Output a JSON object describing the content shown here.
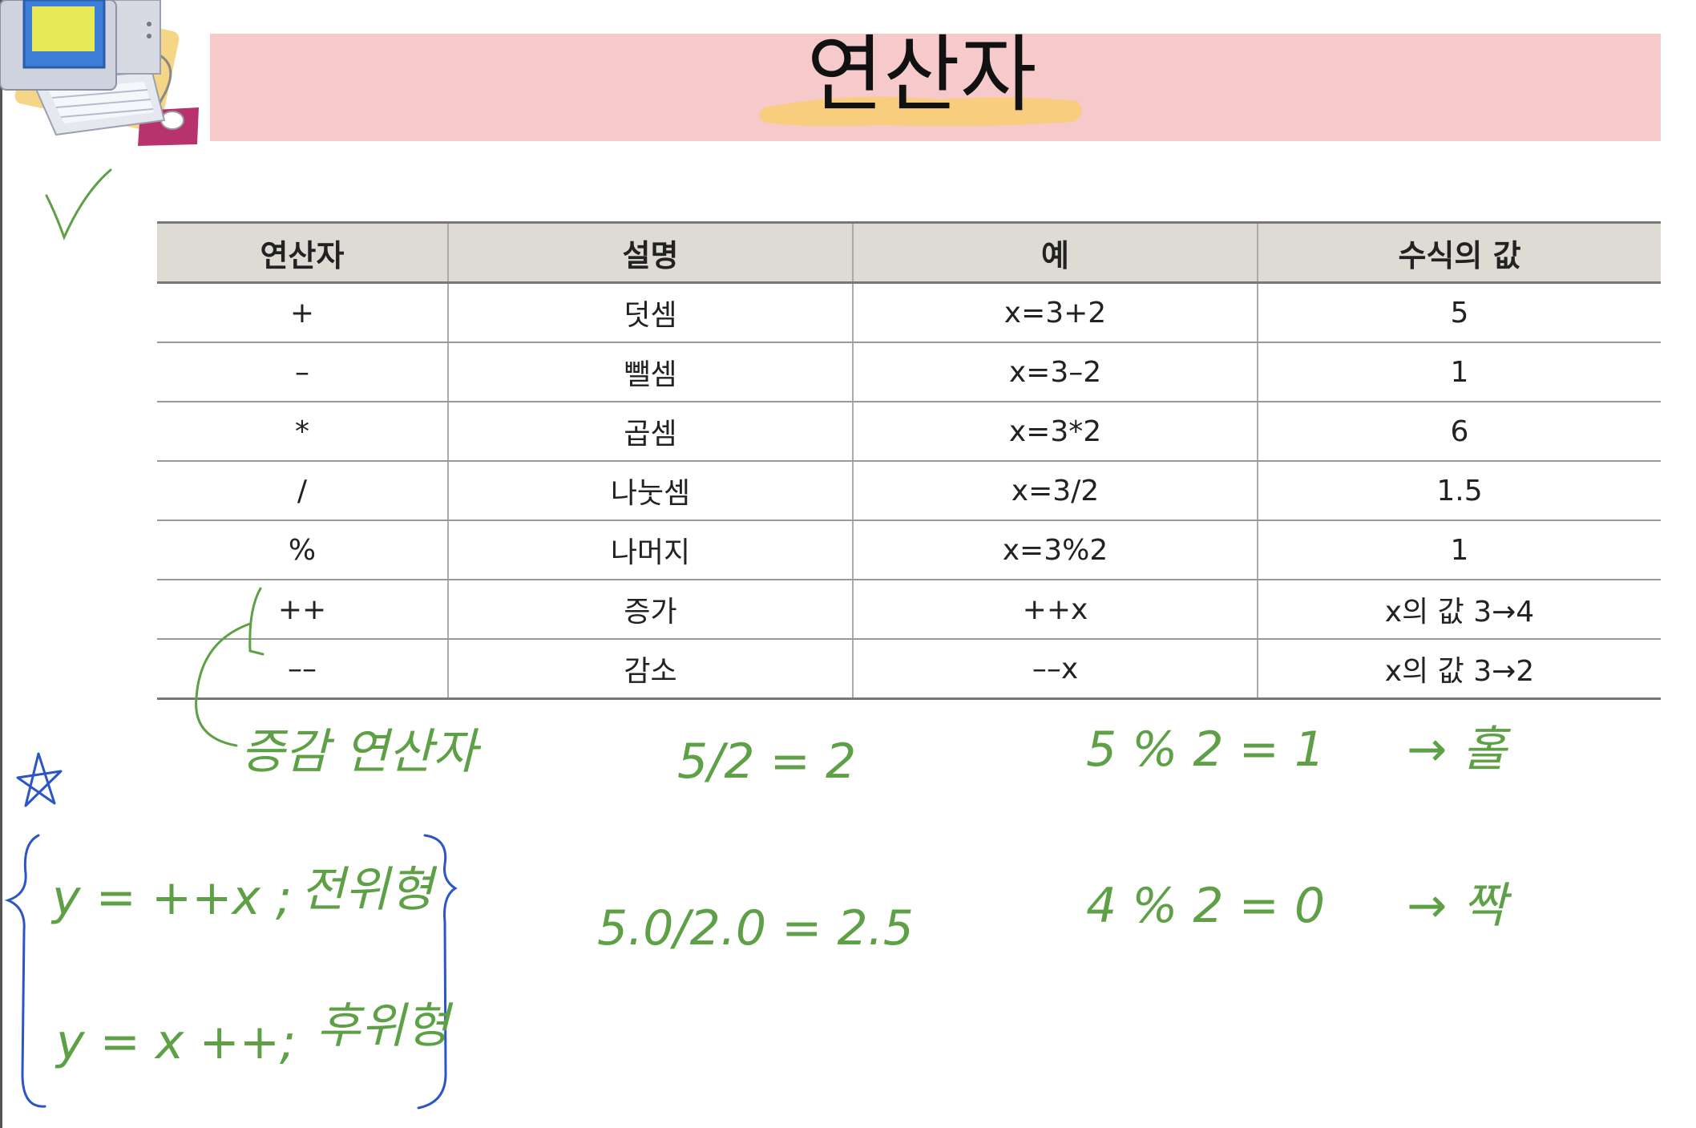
{
  "title": "연산자",
  "table": {
    "headers": [
      "연산자",
      "설명",
      "예",
      "수식의 값"
    ],
    "rows": [
      [
        "+",
        "덧셈",
        "x=3+2",
        "5"
      ],
      [
        "–",
        "뺄셈",
        "x=3–2",
        "1"
      ],
      [
        "*",
        "곱셈",
        "x=3*2",
        "6"
      ],
      [
        "/",
        "나눗셈",
        "x=3/2",
        "1.5"
      ],
      [
        "%",
        "나머지",
        "x=3%2",
        "1"
      ],
      [
        "++",
        "증가",
        "++x",
        "x의 값 3→4"
      ],
      [
        "––",
        "감소",
        "––x",
        "x의 값 3→2"
      ]
    ]
  },
  "annotations": {
    "increment_note": "증감 연산자",
    "int_div": "5/2 = 2",
    "mod_odd": "5 % 2 = 1",
    "odd_label": "→ 홀",
    "float_div": "5.0/2.0 = 2.5",
    "mod_even": "4 % 2 = 0",
    "even_label": "→ 짝",
    "prefix_code": "y = ++x ;",
    "prefix_label": "전위형",
    "postfix_code": "y = x ++;",
    "postfix_label": "후위형"
  },
  "colors": {
    "title_band": "#f6caca",
    "title_highlight": "#f8cd7e",
    "header_bg": "#dedbd5",
    "ink_green": "#5ea046",
    "ink_blue": "#2c55c6"
  },
  "icons": [
    "computer-clipart-icon",
    "checkmark-icon",
    "star-icon"
  ]
}
